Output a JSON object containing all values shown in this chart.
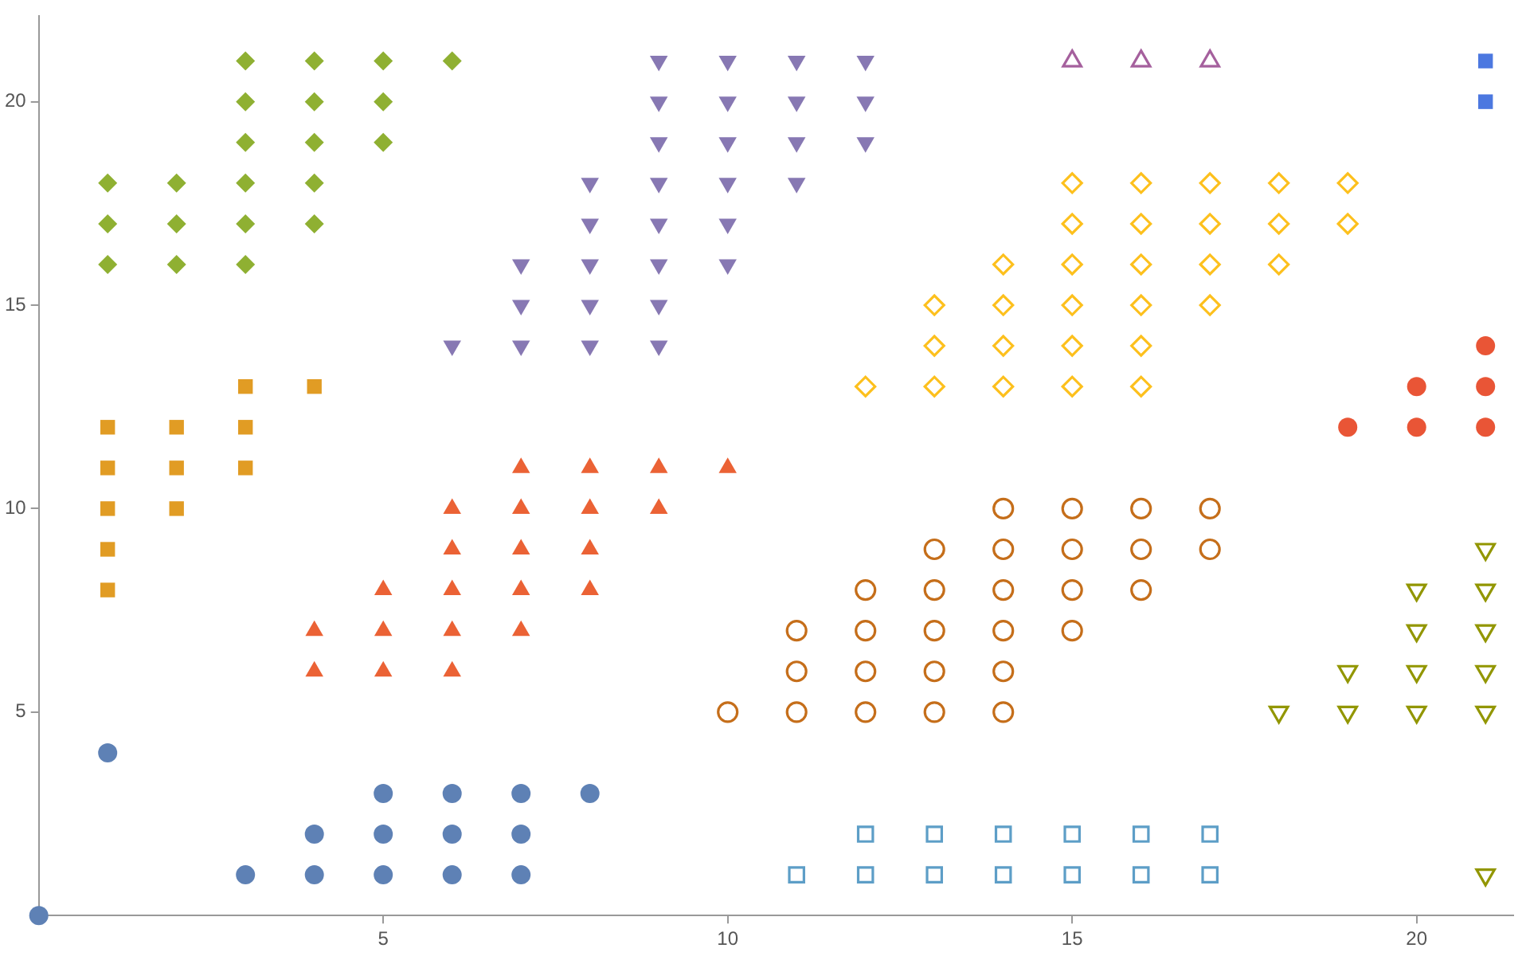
{
  "chart_data": {
    "type": "scatter",
    "xlim": [
      0,
      21.4
    ],
    "ylim": [
      0,
      22.1
    ],
    "xticks": [
      5,
      10,
      15,
      20
    ],
    "yticks": [
      5,
      10,
      15,
      20
    ],
    "grid": false,
    "legend": false,
    "series": [
      {
        "color": "#5e81b5",
        "marker": "circle",
        "x": [
          0,
          1,
          3,
          4,
          4,
          5,
          5,
          5,
          6,
          6,
          6,
          7,
          7,
          7,
          8
        ],
        "values": [
          0,
          4,
          1,
          1,
          2,
          1,
          2,
          3,
          1,
          2,
          3,
          1,
          2,
          3,
          3
        ]
      },
      {
        "color": "#e19c24",
        "marker": "square",
        "x": [
          1,
          1,
          1,
          1,
          1,
          2,
          2,
          2,
          3,
          3,
          3,
          4
        ],
        "values": [
          8,
          9,
          10,
          11,
          12,
          10,
          11,
          12,
          11,
          12,
          13,
          13
        ]
      },
      {
        "color": "#8fb032",
        "marker": "diamond",
        "x": [
          1,
          1,
          1,
          2,
          2,
          2,
          3,
          3,
          3,
          3,
          3,
          3,
          4,
          4,
          4,
          4,
          4,
          5,
          5,
          5,
          6
        ],
        "values": [
          16,
          17,
          18,
          16,
          17,
          18,
          16,
          17,
          18,
          19,
          20,
          21,
          17,
          18,
          19,
          20,
          21,
          19,
          20,
          21,
          21
        ]
      },
      {
        "color": "#eb6235",
        "marker": "triangle",
        "x": [
          4,
          4,
          5,
          5,
          5,
          6,
          6,
          6,
          6,
          6,
          7,
          7,
          7,
          7,
          7,
          8,
          8,
          8,
          8,
          9,
          9,
          10
        ],
        "values": [
          6,
          7,
          6,
          7,
          8,
          6,
          7,
          8,
          9,
          10,
          7,
          8,
          9,
          10,
          11,
          8,
          9,
          10,
          11,
          10,
          11,
          11
        ]
      },
      {
        "color": "#8778b3",
        "marker": "triangle-down",
        "x": [
          6,
          7,
          7,
          7,
          8,
          8,
          8,
          8,
          8,
          9,
          9,
          9,
          9,
          9,
          9,
          9,
          9,
          10,
          10,
          10,
          10,
          10,
          10,
          11,
          11,
          11,
          11,
          12,
          12,
          12
        ],
        "values": [
          14,
          14,
          15,
          16,
          14,
          15,
          16,
          17,
          18,
          14,
          15,
          16,
          17,
          18,
          19,
          20,
          21,
          16,
          17,
          18,
          19,
          20,
          21,
          18,
          19,
          20,
          21,
          19,
          20,
          21
        ]
      },
      {
        "color": "#5d9ec7",
        "marker": "square-open",
        "x": [
          11,
          12,
          12,
          13,
          13,
          14,
          14,
          15,
          15,
          16,
          16,
          17,
          17
        ],
        "values": [
          1,
          1,
          2,
          1,
          2,
          1,
          2,
          1,
          2,
          1,
          2,
          1,
          2
        ]
      },
      {
        "color": "#c56e1a",
        "marker": "circle-open",
        "x": [
          10,
          11,
          11,
          11,
          12,
          12,
          12,
          12,
          13,
          13,
          13,
          13,
          13,
          14,
          14,
          14,
          14,
          14,
          14,
          15,
          15,
          15,
          15,
          16,
          16,
          16,
          17,
          17
        ],
        "values": [
          5,
          5,
          6,
          7,
          5,
          6,
          7,
          8,
          5,
          6,
          7,
          8,
          9,
          5,
          6,
          7,
          8,
          9,
          10,
          7,
          8,
          9,
          10,
          8,
          9,
          10,
          9,
          10
        ]
      },
      {
        "color": "#fdc01d",
        "marker": "diamond-open",
        "x": [
          12,
          13,
          13,
          13,
          14,
          14,
          14,
          14,
          15,
          15,
          15,
          15,
          15,
          15,
          16,
          16,
          16,
          16,
          16,
          16,
          17,
          17,
          17,
          17,
          18,
          18,
          18,
          19,
          19
        ],
        "values": [
          13,
          13,
          14,
          15,
          13,
          14,
          15,
          16,
          13,
          14,
          15,
          16,
          17,
          18,
          13,
          14,
          15,
          16,
          17,
          18,
          15,
          16,
          17,
          18,
          16,
          17,
          18,
          17,
          18
        ]
      },
      {
        "color": "#a5609d",
        "marker": "triangle-open",
        "x": [
          15,
          16,
          17
        ],
        "values": [
          21,
          21,
          21
        ]
      },
      {
        "color": "#4c78e0",
        "marker": "square",
        "x": [
          21,
          21
        ],
        "values": [
          20,
          21
        ]
      },
      {
        "color": "#e95536",
        "marker": "circle",
        "x": [
          19,
          20,
          20,
          21,
          21,
          21
        ],
        "values": [
          12,
          12,
          13,
          12,
          13,
          14
        ]
      },
      {
        "color": "#929600",
        "marker": "triangle-down-open",
        "x": [
          18,
          19,
          19,
          20,
          20,
          20,
          20,
          21,
          21,
          21,
          21,
          21,
          21
        ],
        "values": [
          5,
          5,
          6,
          5,
          6,
          7,
          8,
          1,
          5,
          6,
          7,
          8,
          9
        ]
      }
    ]
  }
}
